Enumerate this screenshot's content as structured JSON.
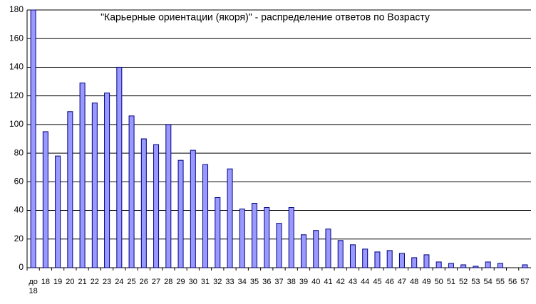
{
  "chart_data": {
    "type": "bar",
    "title": "\"Карьерные ориентации (якоря)\" - распределение ответов по Возрасту",
    "categories": [
      "до 18",
      "18",
      "19",
      "20",
      "21",
      "22",
      "23",
      "24",
      "25",
      "26",
      "27",
      "28",
      "29",
      "30",
      "31",
      "32",
      "33",
      "34",
      "35",
      "36",
      "37",
      "38",
      "39",
      "40",
      "41",
      "42",
      "43",
      "44",
      "45",
      "46",
      "47",
      "48",
      "49",
      "50",
      "51",
      "52",
      "53",
      "54",
      "55",
      "56",
      "57"
    ],
    "values": [
      180,
      95,
      78,
      109,
      129,
      115,
      122,
      140,
      106,
      90,
      86,
      100,
      75,
      82,
      72,
      49,
      69,
      41,
      45,
      42,
      31,
      42,
      23,
      26,
      27,
      19,
      16,
      13,
      11,
      12,
      10,
      7,
      9,
      4,
      3,
      2,
      1,
      4,
      3,
      0,
      2
    ],
    "color": "#9999ff",
    "ylim": [
      0,
      180
    ],
    "yticks": [
      0,
      20,
      40,
      60,
      80,
      100,
      120,
      140,
      160,
      180
    ],
    "grid": true
  }
}
